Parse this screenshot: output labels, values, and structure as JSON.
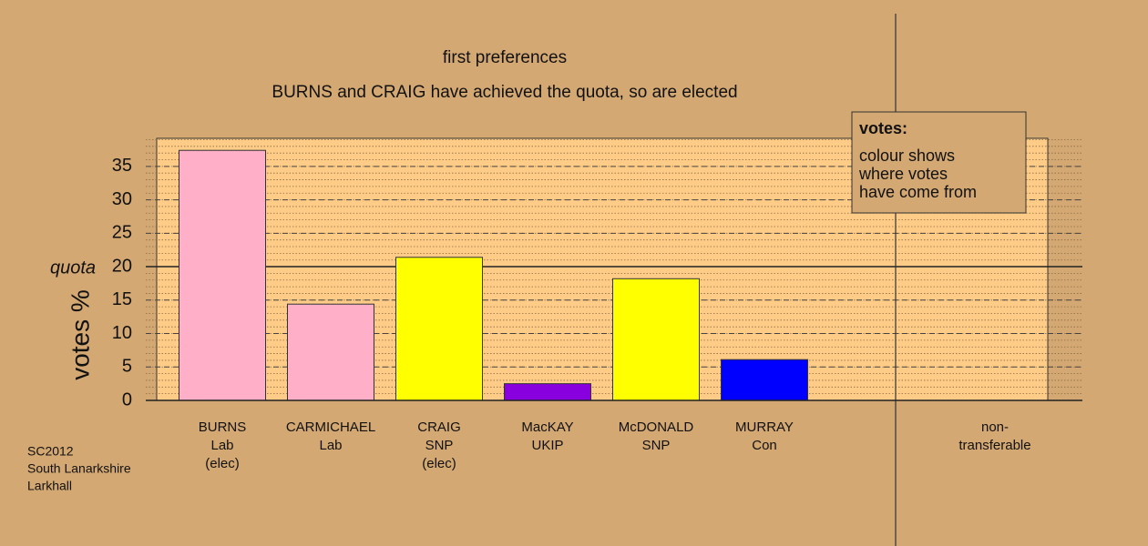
{
  "chart_data": {
    "type": "bar",
    "title": "first preferences",
    "subtitle": "BURNS and CRAIG have achieved the quota, so are elected",
    "y_label": "votes %",
    "categories": [
      [
        "BURNS",
        "Lab",
        "(elec)"
      ],
      [
        "CARMICHAEL",
        "Lab"
      ],
      [
        "CRAIG",
        "SNP",
        "(elec)"
      ],
      [
        "MacKAY",
        "UKIP"
      ],
      [
        "McDONALD",
        "SNP"
      ],
      [
        "MURRAY",
        "Con"
      ],
      [
        "non-",
        "transferable"
      ]
    ],
    "values": [
      37.4,
      14.4,
      21.4,
      2.5,
      18.2,
      6.1,
      0
    ],
    "colors": [
      "#ffb0c8",
      "#ffb0c8",
      "#ffff00",
      "#8800dd",
      "#ffff00",
      "#0000ff",
      "#d4a872"
    ],
    "ylim": [
      0,
      39.2
    ],
    "yticks": [
      0,
      5,
      10,
      15,
      20,
      25,
      30,
      35
    ],
    "grid": true,
    "quota": {
      "value": 20,
      "label": "quota"
    },
    "legend": {
      "title": "votes:",
      "lines": [
        "colour shows",
        "where votes",
        "have come from"
      ]
    },
    "footnote": [
      "SC2012",
      "South Lanarkshire",
      "Larkhall"
    ]
  }
}
